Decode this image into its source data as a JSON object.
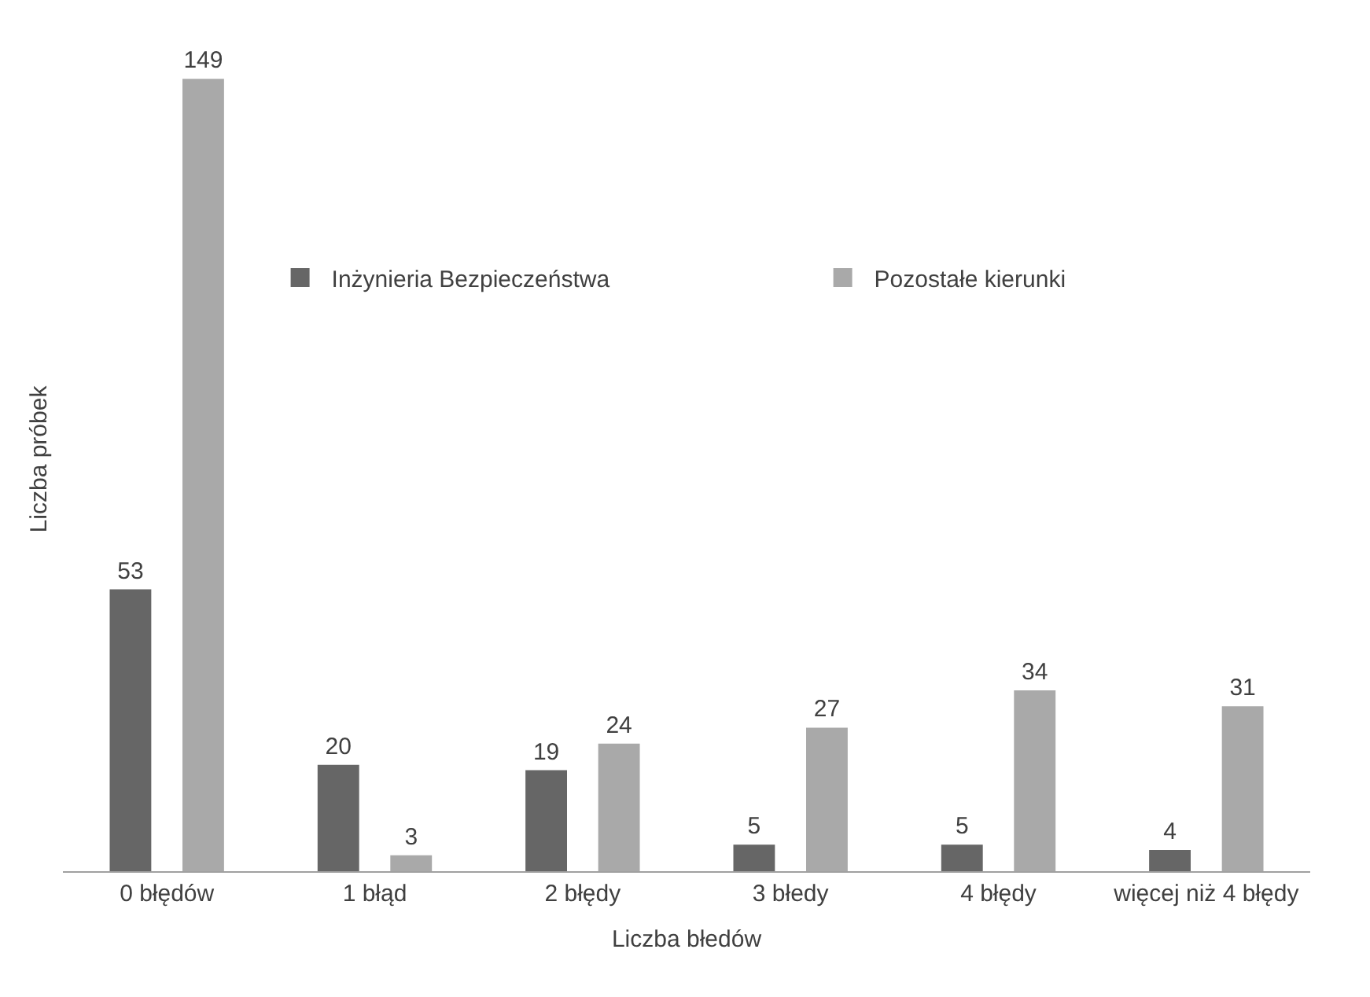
{
  "chart_data": {
    "type": "bar",
    "xlabel": "Liczba błedów",
    "ylabel": "Liczba próbek",
    "categories": [
      "0 błędów",
      "1 błąd",
      "2 błędy",
      "3 błedy",
      "4 błędy",
      "więcej niż 4 błędy"
    ],
    "series": [
      {
        "name": "Inżynieria Bezpieczeństwa",
        "color": "#666666",
        "values": [
          53,
          20,
          19,
          5,
          5,
          4
        ]
      },
      {
        "name": "Pozostałe kierunki",
        "color": "#a9a9a9",
        "values": [
          149,
          3,
          24,
          27,
          34,
          31
        ]
      }
    ],
    "data_labels": true,
    "legend": "top"
  }
}
